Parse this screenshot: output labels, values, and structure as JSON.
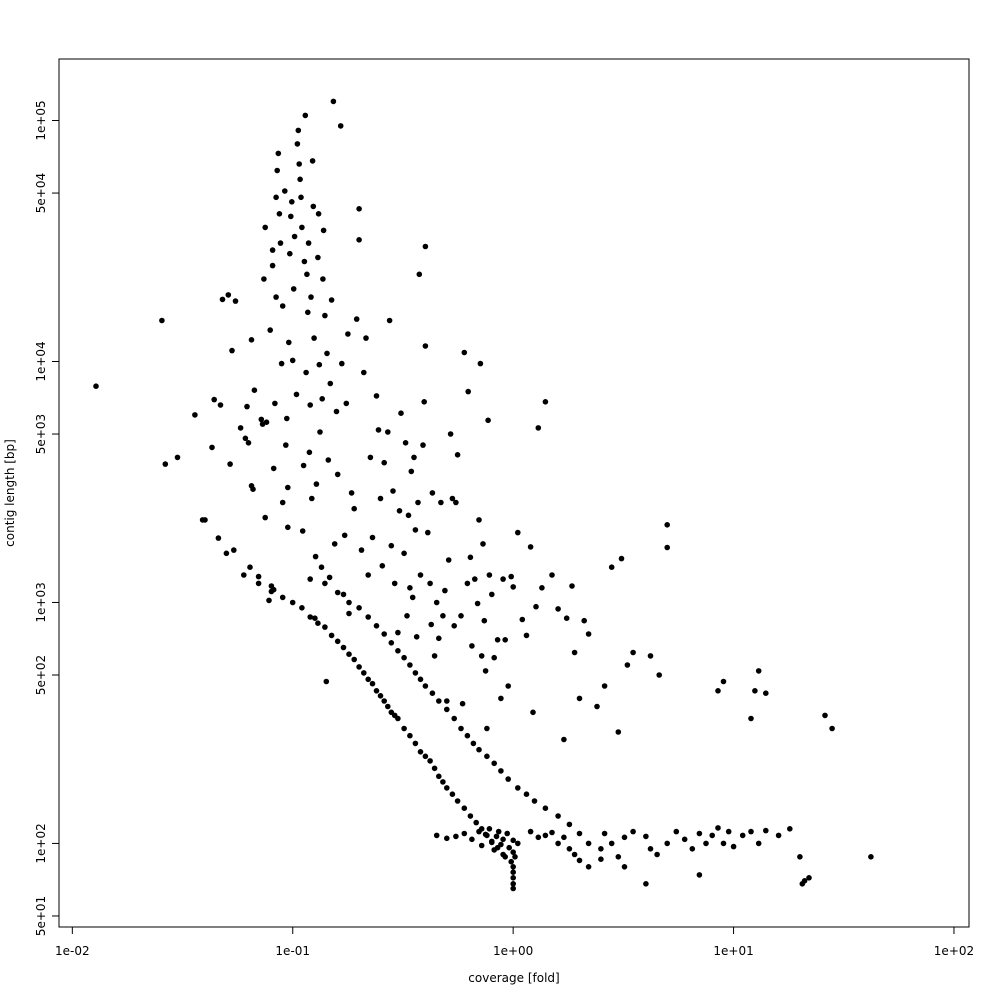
{
  "chart_data": {
    "type": "scatter",
    "title": "",
    "xlabel": "coverage [fold]",
    "ylabel": "contig length [bp]",
    "x_scale": "log",
    "y_scale": "log",
    "xlim": [
      0.0087,
      117
    ],
    "ylim": [
      45,
      180000
    ],
    "grid": false,
    "legend": "none",
    "point_color": "#000000",
    "x_ticks": [
      {
        "value": 0.01,
        "label": "1e-02"
      },
      {
        "value": 0.1,
        "label": "1e-01"
      },
      {
        "value": 1,
        "label": "1e+00"
      },
      {
        "value": 10,
        "label": "1e+01"
      },
      {
        "value": 100,
        "label": "1e+02"
      }
    ],
    "y_ticks": [
      {
        "value": 50,
        "label": "5e+01"
      },
      {
        "value": 100,
        "label": "1e+02"
      },
      {
        "value": 500,
        "label": "5e+02"
      },
      {
        "value": 1000,
        "label": "1e+03"
      },
      {
        "value": 5000,
        "label": "5e+03"
      },
      {
        "value": 10000,
        "label": "1e+04"
      },
      {
        "value": 50000,
        "label": "5e+04"
      },
      {
        "value": 100000,
        "label": "1e+05"
      }
    ],
    "points": [
      [
        0.0128,
        7900
      ],
      [
        0.0255,
        14800
      ],
      [
        0.0264,
        3750
      ],
      [
        0.036,
        6000
      ],
      [
        0.039,
        2200
      ],
      [
        0.043,
        4400
      ],
      [
        0.044,
        6950
      ],
      [
        0.046,
        1850
      ],
      [
        0.047,
        6600
      ],
      [
        0.048,
        18100
      ],
      [
        0.051,
        18900
      ],
      [
        0.052,
        3750
      ],
      [
        0.053,
        11100
      ],
      [
        0.054,
        1650
      ],
      [
        0.055,
        17800
      ],
      [
        0.058,
        5300
      ],
      [
        0.061,
        4800
      ],
      [
        0.062,
        6500
      ],
      [
        0.063,
        4600
      ],
      [
        0.064,
        1400
      ],
      [
        0.065,
        3050
      ],
      [
        0.065,
        12300
      ],
      [
        0.066,
        2950
      ],
      [
        0.067,
        7600
      ],
      [
        0.07,
        1280
      ],
      [
        0.072,
        5750
      ],
      [
        0.073,
        5500
      ],
      [
        0.074,
        22000
      ],
      [
        0.075,
        2250
      ],
      [
        0.075,
        36000
      ],
      [
        0.076,
        5600
      ],
      [
        0.078,
        1020
      ],
      [
        0.079,
        13500
      ],
      [
        0.08,
        1170
      ],
      [
        0.081,
        25000
      ],
      [
        0.081,
        29000
      ],
      [
        0.082,
        3600
      ],
      [
        0.082,
        1130
      ],
      [
        0.083,
        6700
      ],
      [
        0.084,
        18500
      ],
      [
        0.084,
        48000
      ],
      [
        0.085,
        62000
      ],
      [
        0.086,
        73000
      ],
      [
        0.087,
        41000
      ],
      [
        0.088,
        31000
      ],
      [
        0.089,
        9800
      ],
      [
        0.09,
        17000
      ],
      [
        0.09,
        2600
      ],
      [
        0.092,
        51000
      ],
      [
        0.093,
        4500
      ],
      [
        0.094,
        5800
      ],
      [
        0.095,
        3000
      ],
      [
        0.095,
        2050
      ],
      [
        0.096,
        12000
      ],
      [
        0.097,
        28000
      ],
      [
        0.098,
        40000
      ],
      [
        0.099,
        46000
      ],
      [
        0.1,
        10100
      ],
      [
        0.101,
        20000
      ],
      [
        0.102,
        33000
      ],
      [
        0.104,
        7300
      ],
      [
        0.105,
        80000
      ],
      [
        0.106,
        91000
      ],
      [
        0.107,
        66000
      ],
      [
        0.108,
        57000
      ],
      [
        0.109,
        48000
      ],
      [
        0.11,
        36000
      ],
      [
        0.111,
        1980
      ],
      [
        0.112,
        3700
      ],
      [
        0.113,
        26000
      ],
      [
        0.114,
        105000
      ],
      [
        0.115,
        9000
      ],
      [
        0.116,
        23000
      ],
      [
        0.117,
        16000
      ],
      [
        0.118,
        31000
      ],
      [
        0.119,
        4200
      ],
      [
        0.12,
        6600
      ],
      [
        0.121,
        18500
      ],
      [
        0.122,
        2700
      ],
      [
        0.123,
        68000
      ],
      [
        0.124,
        44000
      ],
      [
        0.125,
        12500
      ],
      [
        0.126,
        860
      ],
      [
        0.127,
        1550
      ],
      [
        0.128,
        3100
      ],
      [
        0.13,
        27000
      ],
      [
        0.131,
        41000
      ],
      [
        0.132,
        9700
      ],
      [
        0.133,
        5100
      ],
      [
        0.135,
        1400
      ],
      [
        0.136,
        7000
      ],
      [
        0.137,
        22000
      ],
      [
        0.138,
        35000
      ],
      [
        0.14,
        15500
      ],
      [
        0.142,
        470
      ],
      [
        0.143,
        10800
      ],
      [
        0.145,
        3900
      ],
      [
        0.147,
        1270
      ],
      [
        0.148,
        8100
      ],
      [
        0.15,
        18000
      ],
      [
        0.153,
        120000
      ],
      [
        0.155,
        1750
      ],
      [
        0.158,
        6200
      ],
      [
        0.16,
        3400
      ],
      [
        0.165,
        95000
      ],
      [
        0.167,
        9800
      ],
      [
        0.17,
        1080
      ],
      [
        0.172,
        1900
      ],
      [
        0.175,
        6700
      ],
      [
        0.178,
        13000
      ],
      [
        0.18,
        900
      ],
      [
        0.185,
        2850
      ],
      [
        0.19,
        2450
      ],
      [
        0.195,
        15000
      ],
      [
        0.2,
        43000
      ],
      [
        0.2,
        32000
      ],
      [
        0.205,
        1650
      ],
      [
        0.21,
        9000
      ],
      [
        0.215,
        12500
      ],
      [
        0.22,
        1300
      ],
      [
        0.225,
        4000
      ],
      [
        0.23,
        1860
      ],
      [
        0.24,
        7200
      ],
      [
        0.245,
        5200
      ],
      [
        0.25,
        2700
      ],
      [
        0.255,
        1420
      ],
      [
        0.26,
        3800
      ],
      [
        0.27,
        5100
      ],
      [
        0.275,
        14800
      ],
      [
        0.28,
        1720
      ],
      [
        0.285,
        2900
      ],
      [
        0.29,
        1200
      ],
      [
        0.3,
        750
      ],
      [
        0.305,
        2400
      ],
      [
        0.31,
        6100
      ],
      [
        0.32,
        1600
      ],
      [
        0.325,
        4600
      ],
      [
        0.33,
        880
      ],
      [
        0.335,
        2300
      ],
      [
        0.34,
        1150
      ],
      [
        0.345,
        3500
      ],
      [
        0.35,
        1050
      ],
      [
        0.355,
        4000
      ],
      [
        0.36,
        2000
      ],
      [
        0.365,
        720
      ],
      [
        0.37,
        2600
      ],
      [
        0.375,
        23000
      ],
      [
        0.38,
        1300
      ],
      [
        0.39,
        4500
      ],
      [
        0.395,
        6800
      ],
      [
        0.4,
        30000
      ],
      [
        0.4,
        11600
      ],
      [
        0.41,
        1950
      ],
      [
        0.42,
        1200
      ],
      [
        0.425,
        810
      ],
      [
        0.43,
        2850
      ],
      [
        0.44,
        600
      ],
      [
        0.45,
        1000
      ],
      [
        0.46,
        710
      ],
      [
        0.47,
        2600
      ],
      [
        0.48,
        880
      ],
      [
        0.49,
        1120
      ],
      [
        0.5,
        390
      ],
      [
        0.51,
        1500
      ],
      [
        0.52,
        5000
      ],
      [
        0.53,
        2700
      ],
      [
        0.54,
        800
      ],
      [
        0.55,
        2600
      ],
      [
        0.56,
        4100
      ],
      [
        0.58,
        880
      ],
      [
        0.59,
        380
      ],
      [
        0.6,
        10900
      ],
      [
        0.62,
        1200
      ],
      [
        0.625,
        7500
      ],
      [
        0.64,
        1540
      ],
      [
        0.65,
        660
      ],
      [
        0.67,
        1250
      ],
      [
        0.69,
        990
      ],
      [
        0.7,
        2200
      ],
      [
        0.71,
        9800
      ],
      [
        0.72,
        600
      ],
      [
        0.73,
        1750
      ],
      [
        0.74,
        840
      ],
      [
        0.75,
        520
      ],
      [
        0.76,
        300
      ],
      [
        0.77,
        5700
      ],
      [
        0.78,
        1300
      ],
      [
        0.8,
        1080
      ],
      [
        0.82,
        590
      ],
      [
        0.85,
        700
      ],
      [
        0.88,
        400
      ],
      [
        0.9,
        1250
      ],
      [
        0.92,
        700
      ],
      [
        0.95,
        450
      ],
      [
        0.98,
        1280
      ],
      [
        1.0,
        1160
      ],
      [
        1.05,
        1950
      ],
      [
        1.1,
        850
      ],
      [
        1.15,
        730
      ],
      [
        1.2,
        1700
      ],
      [
        1.23,
        350
      ],
      [
        1.27,
        960
      ],
      [
        1.3,
        5300
      ],
      [
        1.35,
        1150
      ],
      [
        1.4,
        6800
      ],
      [
        1.5,
        1300
      ],
      [
        1.6,
        940
      ],
      [
        1.7,
        270
      ],
      [
        1.75,
        860
      ],
      [
        1.85,
        1170
      ],
      [
        1.9,
        620
      ],
      [
        2.0,
        400
      ],
      [
        2.1,
        840
      ],
      [
        2.2,
        740
      ],
      [
        2.4,
        370
      ],
      [
        2.6,
        450
      ],
      [
        2.8,
        1400
      ],
      [
        3.0,
        290
      ],
      [
        3.1,
        1520
      ],
      [
        3.3,
        550
      ],
      [
        3.5,
        620
      ],
      [
        4.2,
        600
      ],
      [
        4.6,
        500
      ],
      [
        5.0,
        1690
      ],
      [
        5.0,
        2100
      ],
      [
        8.5,
        430
      ],
      [
        9.0,
        470
      ],
      [
        12.0,
        330
      ],
      [
        12.5,
        430
      ],
      [
        13.0,
        520
      ],
      [
        14.0,
        420
      ],
      [
        26.0,
        340
      ],
      [
        28.0,
        300
      ]
    ],
    "diag_points": [
      [
        0.03,
        4000
      ],
      [
        0.04,
        2200
      ],
      [
        0.05,
        1600
      ],
      [
        0.06,
        1300
      ],
      [
        0.07,
        1200
      ],
      [
        0.08,
        1110
      ],
      [
        0.09,
        1050
      ],
      [
        0.1,
        1000
      ],
      [
        0.11,
        950
      ],
      [
        0.12,
        870
      ],
      [
        0.13,
        820
      ],
      [
        0.14,
        790
      ],
      [
        0.15,
        730
      ],
      [
        0.16,
        690
      ],
      [
        0.17,
        650
      ],
      [
        0.18,
        610
      ],
      [
        0.19,
        580
      ],
      [
        0.2,
        540
      ],
      [
        0.21,
        510
      ],
      [
        0.22,
        480
      ],
      [
        0.23,
        460
      ],
      [
        0.24,
        430
      ],
      [
        0.25,
        410
      ],
      [
        0.26,
        390
      ],
      [
        0.27,
        370
      ],
      [
        0.28,
        350
      ],
      [
        0.29,
        340
      ],
      [
        0.3,
        330
      ],
      [
        0.32,
        300
      ],
      [
        0.34,
        280
      ],
      [
        0.36,
        260
      ],
      [
        0.38,
        240
      ],
      [
        0.4,
        230
      ],
      [
        0.42,
        220
      ],
      [
        0.44,
        205
      ],
      [
        0.46,
        190
      ],
      [
        0.48,
        180
      ],
      [
        0.5,
        170
      ],
      [
        0.53,
        160
      ],
      [
        0.56,
        150
      ],
      [
        0.6,
        140
      ],
      [
        0.64,
        130
      ],
      [
        0.68,
        122
      ],
      [
        0.72,
        115
      ],
      [
        0.76,
        108
      ],
      [
        0.8,
        102
      ],
      [
        0.85,
        96
      ],
      [
        0.9,
        90
      ]
    ],
    "diag2_points": [
      [
        0.12,
        1250
      ],
      [
        0.14,
        1200
      ],
      [
        0.16,
        1100
      ],
      [
        0.18,
        1000
      ],
      [
        0.2,
        950
      ],
      [
        0.22,
        870
      ],
      [
        0.24,
        800
      ],
      [
        0.26,
        740
      ],
      [
        0.28,
        680
      ],
      [
        0.3,
        630
      ],
      [
        0.32,
        590
      ],
      [
        0.34,
        550
      ],
      [
        0.36,
        510
      ],
      [
        0.38,
        480
      ],
      [
        0.4,
        450
      ],
      [
        0.43,
        420
      ],
      [
        0.46,
        390
      ],
      [
        0.5,
        360
      ],
      [
        0.54,
        330
      ],
      [
        0.58,
        300
      ],
      [
        0.62,
        280
      ],
      [
        0.66,
        260
      ],
      [
        0.7,
        245
      ],
      [
        0.76,
        230
      ],
      [
        0.82,
        215
      ],
      [
        0.88,
        200
      ],
      [
        0.95,
        185
      ],
      [
        1.05,
        170
      ],
      [
        1.15,
        160
      ],
      [
        1.25,
        150
      ],
      [
        1.4,
        140
      ],
      [
        1.6,
        130
      ],
      [
        1.8,
        120
      ],
      [
        2.0,
        110
      ],
      [
        2.2,
        100
      ],
      [
        2.5,
        95
      ]
    ],
    "floor_points": [
      [
        0.45,
        108
      ],
      [
        0.5,
        105
      ],
      [
        0.55,
        107
      ],
      [
        0.6,
        110
      ],
      [
        0.65,
        104
      ],
      [
        0.7,
        112
      ],
      [
        0.72,
        98
      ],
      [
        0.75,
        109
      ],
      [
        0.78,
        115
      ],
      [
        0.8,
        101
      ],
      [
        0.82,
        94
      ],
      [
        0.84,
        107
      ],
      [
        0.86,
        112
      ],
      [
        0.88,
        99
      ],
      [
        0.9,
        104
      ],
      [
        0.92,
        88
      ],
      [
        0.94,
        110
      ],
      [
        0.96,
        96
      ],
      [
        0.98,
        84
      ],
      [
        1.0,
        103
      ],
      [
        1.0,
        92
      ],
      [
        1.0,
        80
      ],
      [
        1.0,
        76
      ],
      [
        1.0,
        72
      ],
      [
        1.0,
        68
      ],
      [
        1.0,
        65
      ],
      [
        1.02,
        88
      ],
      [
        1.05,
        100
      ],
      [
        1.2,
        112
      ],
      [
        1.3,
        106
      ],
      [
        1.4,
        108
      ],
      [
        1.5,
        111
      ],
      [
        1.6,
        100
      ],
      [
        1.7,
        106
      ],
      [
        1.8,
        95
      ],
      [
        1.9,
        90
      ],
      [
        2.0,
        85
      ],
      [
        2.2,
        80
      ],
      [
        2.5,
        86
      ],
      [
        2.6,
        110
      ],
      [
        2.8,
        100
      ],
      [
        3.0,
        88
      ],
      [
        3.2,
        106
      ],
      [
        3.5,
        112
      ],
      [
        4.0,
        107
      ],
      [
        4.2,
        95
      ],
      [
        4.5,
        90
      ],
      [
        5.0,
        100
      ],
      [
        5.5,
        112
      ],
      [
        6.0,
        104
      ],
      [
        6.5,
        95
      ],
      [
        7.0,
        110
      ],
      [
        7.5,
        100
      ],
      [
        8.0,
        108
      ],
      [
        8.5,
        116
      ],
      [
        9.0,
        100
      ],
      [
        9.5,
        112
      ],
      [
        10.0,
        97
      ],
      [
        11.0,
        108
      ],
      [
        12.0,
        112
      ],
      [
        13.0,
        100
      ],
      [
        14.0,
        113
      ],
      [
        16.0,
        108
      ],
      [
        18.0,
        115
      ],
      [
        20.0,
        88
      ],
      [
        20.5,
        68
      ],
      [
        22.0,
        72
      ],
      [
        42.0,
        88
      ],
      [
        4.0,
        68
      ],
      [
        7.0,
        74
      ],
      [
        3.2,
        80
      ],
      [
        21.0,
        70
      ]
    ]
  }
}
